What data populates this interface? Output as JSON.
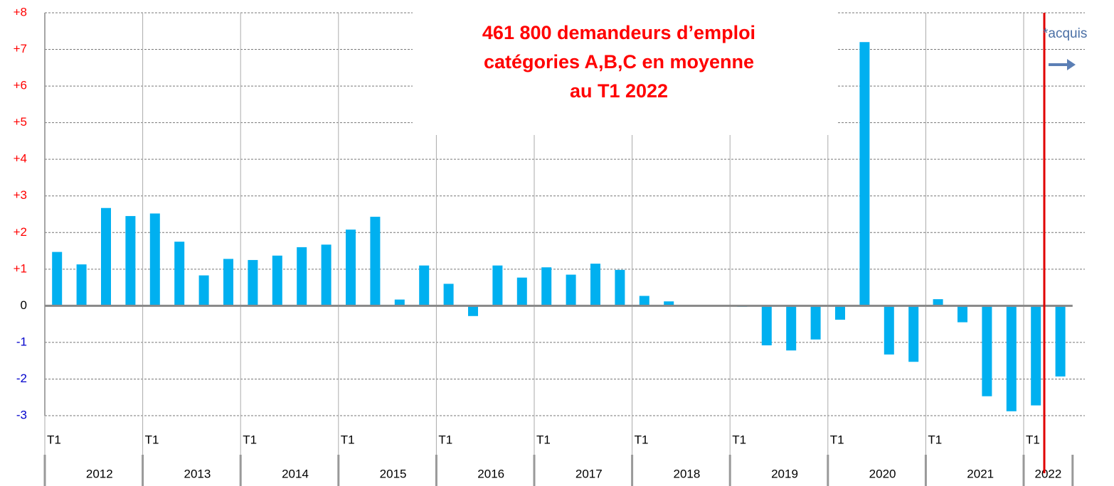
{
  "chart_data": {
    "type": "bar",
    "title": [
      "461 800 demandeurs d’emploi",
      "catégories A,B,C en moyenne",
      "au T1 2022"
    ],
    "annotation": "*acquis",
    "years": [
      "2012",
      "2013",
      "2014",
      "2015",
      "2016",
      "2017",
      "2018",
      "2019",
      "2020",
      "2021",
      "2022"
    ],
    "categories": [
      "T1",
      null,
      null,
      null,
      "T1",
      null,
      null,
      null,
      "T1",
      null,
      null,
      null,
      "T1",
      null,
      null,
      null,
      "T1",
      null,
      null,
      null,
      "T1",
      null,
      null,
      null,
      "T1",
      null,
      null,
      null,
      "T1",
      null,
      null,
      null,
      "T1",
      null,
      null,
      null,
      "T1",
      null,
      null,
      null,
      "T1",
      null
    ],
    "values": [
      1.47,
      1.13,
      2.67,
      2.45,
      2.52,
      1.75,
      0.83,
      1.28,
      1.25,
      1.37,
      1.6,
      1.67,
      2.08,
      2.43,
      0.17,
      1.1,
      0.6,
      -0.28,
      1.1,
      0.77,
      1.05,
      0.85,
      1.15,
      0.98,
      0.27,
      0.12,
      0,
      0,
      -0.03,
      -1.08,
      -1.22,
      -0.92,
      -0.38,
      7.2,
      -1.33,
      -1.53,
      0.18,
      -0.45,
      -2.47,
      -2.88,
      -2.72,
      -1.93
    ],
    "color": "#00b0f0",
    "ylim": [
      -3,
      8
    ],
    "yticks": [
      {
        "value": 8,
        "label": "+8"
      },
      {
        "value": 7,
        "label": "+7"
      },
      {
        "value": 6,
        "label": "+6"
      },
      {
        "value": 5,
        "label": "+5"
      },
      {
        "value": 4,
        "label": "+4"
      },
      {
        "value": 3,
        "label": "+3"
      },
      {
        "value": 2,
        "label": "+2"
      },
      {
        "value": 1,
        "label": "+1"
      },
      0,
      -1,
      -2,
      -3
    ],
    "tick_colors": {
      "positive": "#ff0000",
      "negative": "#0000cc"
    },
    "grid": true
  }
}
